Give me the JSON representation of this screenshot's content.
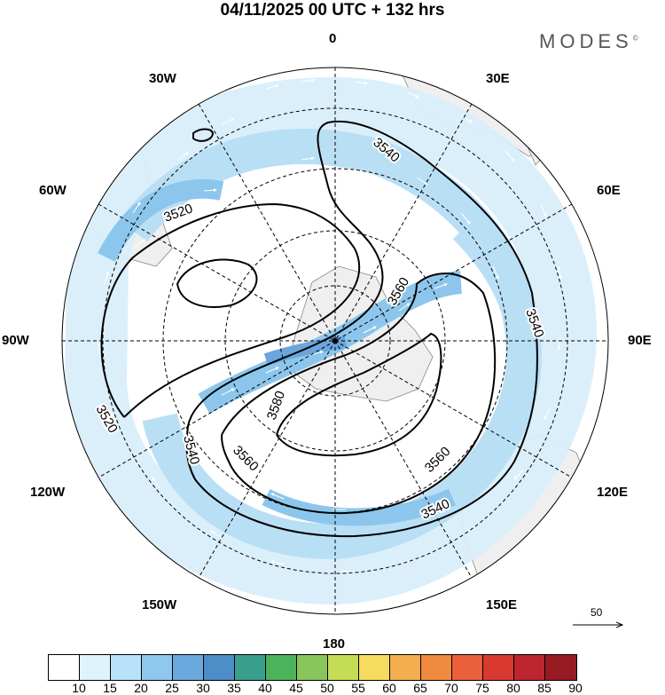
{
  "title": "04/11/2025  00 UTC  + 132 hrs",
  "brand": "MODES",
  "brand_mark": "©",
  "longitude_labels": {
    "top": "0",
    "top_left": "30W",
    "top_right": "30E",
    "upper_left": "60W",
    "upper_right": "60E",
    "left": "90W",
    "right": "90E",
    "lower_left": "120W",
    "lower_right": "120E",
    "bottom_left": "150W",
    "bottom_right": "150E",
    "bottom": "180"
  },
  "contour_labels": [
    "3520",
    "3520",
    "3540",
    "3540",
    "3540",
    "3540",
    "3560",
    "3560",
    "3560",
    "3580"
  ],
  "reference_vector": {
    "label": "50",
    "value": 50
  },
  "colorbar": {
    "ticks": [
      "10",
      "15",
      "20",
      "25",
      "30",
      "35",
      "40",
      "45",
      "50",
      "55",
      "60",
      "65",
      "70",
      "75",
      "80",
      "85",
      "90"
    ],
    "colors": [
      "#ffffff",
      "#dff3fd",
      "#b8e2f8",
      "#8fc8ee",
      "#6aa9de",
      "#4d8ec9",
      "#3aa08d",
      "#4cb35b",
      "#88c55a",
      "#c5dc55",
      "#f5dc5f",
      "#f4ae4f",
      "#ef8a3e",
      "#e9603a",
      "#d83a32",
      "#bd2530",
      "#981a23"
    ]
  },
  "colors": {
    "land": "#efefef",
    "speed_light": "#d9eefb",
    "speed_mid": "#b9dff5",
    "speed_strong": "#8cc6ec",
    "speed_max": "#6aa6dc",
    "contour": "#000000",
    "grid": "#000000"
  }
}
